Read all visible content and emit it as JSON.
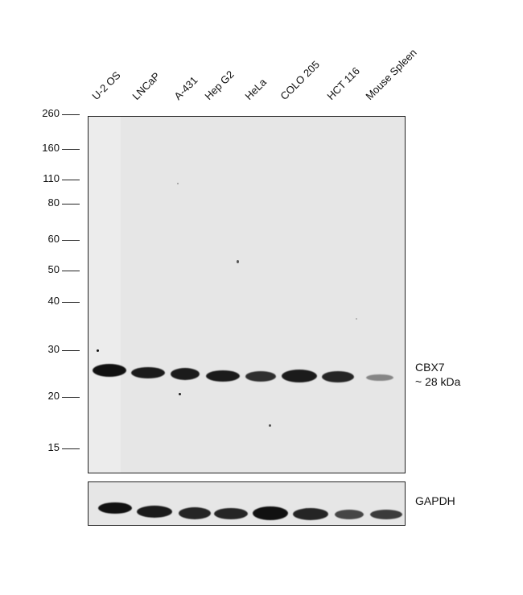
{
  "lanes": [
    "U-2 OS",
    "LNCaP",
    "A-431",
    "Hep G2",
    "HeLa",
    "COLO 205",
    "HCT 116",
    "Mouse Spleen"
  ],
  "mw_markers": [
    "260",
    "160",
    "110",
    "80",
    "60",
    "50",
    "40",
    "30",
    "20",
    "15"
  ],
  "target_label_line1": "CBX7",
  "target_label_line2": "~ 28 kDa",
  "loading_control_label": "GAPDH",
  "band_intensity_main": [
    1.0,
    0.95,
    0.95,
    0.95,
    0.85,
    0.95,
    0.9,
    0.45
  ],
  "band_intensity_gapdh": [
    1.0,
    0.95,
    0.9,
    0.9,
    1.0,
    0.9,
    0.75,
    0.8
  ]
}
